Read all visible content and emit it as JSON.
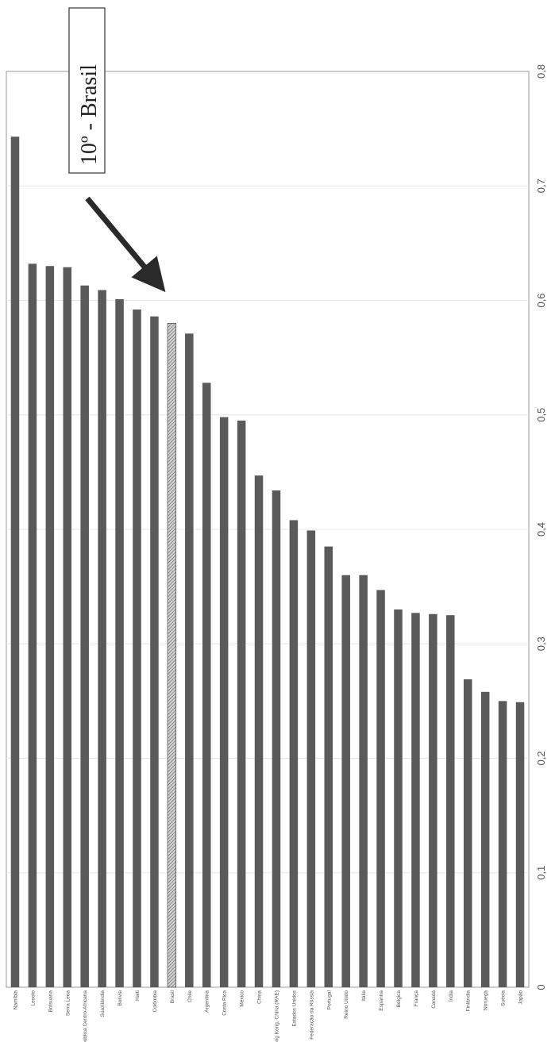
{
  "chart_data": {
    "type": "bar",
    "orientation": "vertical, page rotated 90 degrees clockwise",
    "categories": [
      "Namíbia",
      "Lesoto",
      "Botsuana",
      "Serra Leoa",
      "República Centro-Africana",
      "Suazilândia",
      "Bolívia",
      "Haiti",
      "Colômbia",
      "Brasil",
      "Chile",
      "Argentina",
      "Costa Rica",
      "México",
      "China",
      "Hong Kong, China (RAE)",
      "Estados Unidos",
      "Federação da Rússia",
      "Portugal",
      "Reino Unido",
      "Itália",
      "Espanha",
      "Bélgica",
      "França",
      "Canadá",
      "Índia",
      "Finlândia",
      "Noruega",
      "Suécia",
      "Japão"
    ],
    "values": [
      0.743,
      0.632,
      0.63,
      0.629,
      0.613,
      0.609,
      0.601,
      0.592,
      0.586,
      0.58,
      0.571,
      0.528,
      0.498,
      0.495,
      0.447,
      0.434,
      0.408,
      0.399,
      0.385,
      0.36,
      0.36,
      0.347,
      0.33,
      0.327,
      0.326,
      0.325,
      0.269,
      0.258,
      0.25,
      0.249
    ],
    "highlight": "Brasil",
    "ylim": [
      0,
      0.8
    ],
    "yticks": [
      "0",
      "0,1",
      "0,2",
      "0,3",
      "0,4",
      "0,5",
      "0,6",
      "0,7",
      "0,8"
    ],
    "grid": true,
    "annotation": "10º - Brasil",
    "colors": {
      "bar": "#5a5a5a",
      "highlight_fill": "#cfcfcf",
      "highlight_hatch": "#555555",
      "grid": "#e6e6e6",
      "axis": "#999999",
      "arrow": "#2a2a2a"
    }
  }
}
